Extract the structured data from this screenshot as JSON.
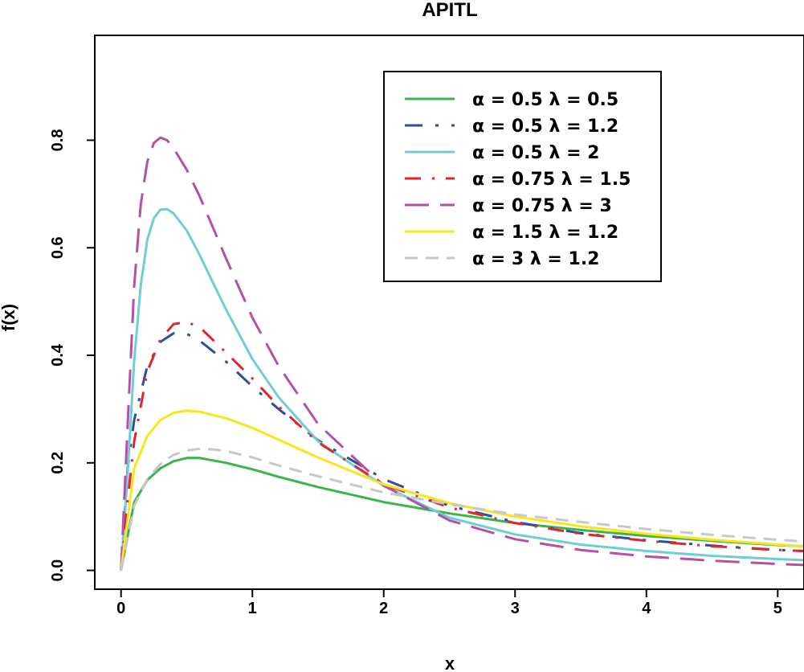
{
  "chart_data": {
    "type": "line",
    "title": "APITL",
    "xlabel": "x",
    "ylabel": "f(x)",
    "xlim": [
      -0.2,
      5.2
    ],
    "ylim": [
      -0.035,
      0.995
    ],
    "xticks": [
      0,
      1,
      2,
      3,
      4,
      5
    ],
    "xtick_labels": [
      "0",
      "1",
      "2",
      "3",
      "4",
      "5"
    ],
    "yticks": [
      0.0,
      0.2,
      0.4,
      0.6,
      0.8
    ],
    "ytick_labels": [
      "0.0",
      "0.2",
      "0.4",
      "0.6",
      "0.8"
    ],
    "legend_position": "top-right",
    "series": [
      {
        "name": "α = 0.5  λ = 0.5",
        "color": "#3cb44b",
        "dash": "solid",
        "alpha": 0.5,
        "lambda": 0.5,
        "x": [
          0,
          0.1,
          0.2,
          0.3,
          0.4,
          0.5,
          0.6,
          0.8,
          1.0,
          1.2,
          1.5,
          2.0,
          2.5,
          3.0,
          3.5,
          4.0,
          4.5,
          5.0,
          5.2
        ],
        "y": [
          0.0,
          0.127,
          0.168,
          0.19,
          0.203,
          0.209,
          0.209,
          0.2,
          0.188,
          0.174,
          0.155,
          0.127,
          0.106,
          0.088,
          0.075,
          0.064,
          0.055,
          0.047,
          0.045
        ]
      },
      {
        "name": "α = 0.5  λ = 1.2",
        "color": "#2e4d9b",
        "dash": "longdash-dot",
        "alpha": 0.5,
        "lambda": 1.2,
        "x": [
          0,
          0.05,
          0.1,
          0.2,
          0.3,
          0.4,
          0.5,
          0.6,
          0.8,
          1.0,
          1.2,
          1.5,
          2.0,
          2.5,
          3.0,
          3.5,
          4.0,
          4.5,
          5.0,
          5.2
        ],
        "y": [
          0.0,
          0.19,
          0.28,
          0.38,
          0.425,
          0.441,
          0.44,
          0.427,
          0.388,
          0.342,
          0.3,
          0.242,
          0.17,
          0.12,
          0.09,
          0.069,
          0.056,
          0.046,
          0.038,
          0.036
        ]
      },
      {
        "name": "α = 0.5  λ = 2",
        "color": "#6fcdd8",
        "dash": "solid",
        "alpha": 0.5,
        "lambda": 2,
        "x": [
          0,
          0.05,
          0.1,
          0.15,
          0.2,
          0.25,
          0.3,
          0.35,
          0.4,
          0.5,
          0.6,
          0.7,
          0.8,
          1.0,
          1.2,
          1.5,
          2.0,
          2.5,
          3.0,
          3.5,
          4.0,
          4.5,
          5.0,
          5.2
        ],
        "y": [
          0.0,
          0.18,
          0.39,
          0.53,
          0.615,
          0.655,
          0.671,
          0.672,
          0.664,
          0.632,
          0.586,
          0.535,
          0.485,
          0.393,
          0.322,
          0.24,
          0.157,
          0.098,
          0.067,
          0.048,
          0.036,
          0.027,
          0.021,
          0.019
        ]
      },
      {
        "name": "α = 0.75  λ = 1.5",
        "color": "#e0262b",
        "dash": "dashdot",
        "alpha": 0.75,
        "lambda": 1.5,
        "x": [
          0,
          0.05,
          0.1,
          0.2,
          0.3,
          0.4,
          0.5,
          0.6,
          0.8,
          1.0,
          1.2,
          1.5,
          2.0,
          2.5,
          3.0,
          3.5,
          4.0,
          4.5,
          5.0,
          5.2
        ],
        "y": [
          0.0,
          0.13,
          0.24,
          0.37,
          0.43,
          0.458,
          0.462,
          0.452,
          0.405,
          0.357,
          0.305,
          0.238,
          0.16,
          0.117,
          0.088,
          0.068,
          0.055,
          0.045,
          0.038,
          0.036
        ]
      },
      {
        "name": "α = 0.75  λ = 3",
        "color": "#b352a4",
        "dash": "longdash",
        "alpha": 0.75,
        "lambda": 3,
        "x": [
          0,
          0.05,
          0.1,
          0.15,
          0.2,
          0.25,
          0.3,
          0.35,
          0.4,
          0.5,
          0.6,
          0.8,
          1.0,
          1.2,
          1.5,
          2.0,
          2.5,
          3.0,
          3.5,
          4.0,
          4.5,
          5.0,
          5.2
        ],
        "y": [
          0.0,
          0.27,
          0.53,
          0.68,
          0.76,
          0.795,
          0.805,
          0.8,
          0.785,
          0.745,
          0.695,
          0.58,
          0.47,
          0.38,
          0.272,
          0.158,
          0.093,
          0.058,
          0.038,
          0.026,
          0.018,
          0.012,
          0.01
        ]
      },
      {
        "name": "α = 1.5  λ = 1.2",
        "color": "#f8e51c",
        "dash": "solid",
        "alpha": 1.5,
        "lambda": 1.2,
        "x": [
          0,
          0.1,
          0.2,
          0.3,
          0.4,
          0.5,
          0.6,
          0.8,
          1.0,
          1.2,
          1.5,
          2.0,
          2.5,
          3.0,
          3.5,
          4.0,
          4.5,
          5.0,
          5.2
        ],
        "y": [
          0.0,
          0.19,
          0.25,
          0.28,
          0.293,
          0.297,
          0.295,
          0.283,
          0.265,
          0.243,
          0.21,
          0.16,
          0.125,
          0.1,
          0.082,
          0.068,
          0.057,
          0.048,
          0.045
        ]
      },
      {
        "name": "α = 3  λ = 1.2",
        "color": "#c8c8c8",
        "dash": "dash",
        "alpha": 3,
        "lambda": 1.2,
        "x": [
          0,
          0.1,
          0.2,
          0.3,
          0.4,
          0.5,
          0.6,
          0.7,
          0.8,
          1.0,
          1.2,
          1.5,
          2.0,
          2.5,
          3.0,
          3.5,
          4.0,
          4.5,
          5.0,
          5.2
        ],
        "y": [
          0.0,
          0.12,
          0.17,
          0.198,
          0.215,
          0.223,
          0.226,
          0.225,
          0.222,
          0.21,
          0.195,
          0.175,
          0.145,
          0.123,
          0.104,
          0.09,
          0.077,
          0.066,
          0.057,
          0.054
        ]
      }
    ]
  }
}
